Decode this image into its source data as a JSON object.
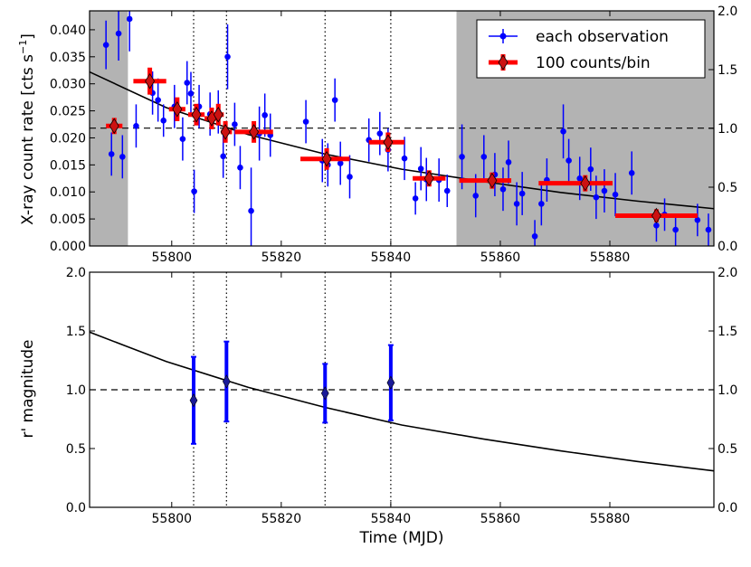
{
  "chart_data": [
    {
      "type": "scatter",
      "panel": "top",
      "ylabel_main": "X-ray count rate [cts s",
      "ylabel_sup": "−1",
      "ylabel_end": "]",
      "xlim": [
        55785,
        55899
      ],
      "ylim": [
        0,
        0.0435
      ],
      "ylim_right": [
        0,
        2.0
      ],
      "yticks": [
        "0.000",
        "0.005",
        "0.010",
        "0.015",
        "0.020",
        "0.025",
        "0.030",
        "0.035",
        "0.040"
      ],
      "ytick_values": [
        0,
        0.005,
        0.01,
        0.015,
        0.02,
        0.025,
        0.03,
        0.035,
        0.04
      ],
      "yticks_right": [
        "0.0",
        "0.5",
        "1.0",
        "1.5",
        "2.0"
      ],
      "yticks_right_values": [
        0,
        0.5,
        1.0,
        1.5,
        2.0
      ],
      "shaded_regions": [
        [
          55785,
          55792
        ],
        [
          55852,
          55899
        ]
      ],
      "dashed_hline": 0.0218,
      "vlines_dotted": [
        55804,
        55810,
        55828,
        55840
      ],
      "legend": {
        "position": "top-right",
        "entries": [
          "each observation",
          "100 counts/bin"
        ]
      },
      "colors": {
        "observation": "#0000ff",
        "binned": "#ff0000",
        "binned_marker": "#cc1111",
        "shade": "#b3b3b3"
      },
      "model_curve": {
        "x": [
          55785,
          55799,
          55814,
          55828,
          55842,
          55857,
          55871,
          55885,
          55899
        ],
        "y": [
          0.0322,
          0.0256,
          0.0206,
          0.017,
          0.0142,
          0.0119,
          0.0099,
          0.0083,
          0.0069
        ]
      },
      "series": [
        {
          "name": "each observation",
          "points": [
            {
              "x": 55788,
              "y": 0.0372,
              "e": 0.0045
            },
            {
              "x": 55789,
              "y": 0.017,
              "e": 0.004
            },
            {
              "x": 55790.3,
              "y": 0.0393,
              "e": 0.005
            },
            {
              "x": 55791,
              "y": 0.0165,
              "e": 0.004
            },
            {
              "x": 55792.3,
              "y": 0.042,
              "e": 0.006
            },
            {
              "x": 55793.5,
              "y": 0.0222,
              "e": 0.004
            },
            {
              "x": 55796.5,
              "y": 0.0283,
              "e": 0.004
            },
            {
              "x": 55797.5,
              "y": 0.027,
              "e": 0.004
            },
            {
              "x": 55798.5,
              "y": 0.0232,
              "e": 0.003
            },
            {
              "x": 55800.5,
              "y": 0.0258,
              "e": 0.004
            },
            {
              "x": 55802,
              "y": 0.0198,
              "e": 0.004
            },
            {
              "x": 55802.8,
              "y": 0.0302,
              "e": 0.004
            },
            {
              "x": 55803.5,
              "y": 0.0282,
              "e": 0.004
            },
            {
              "x": 55804.1,
              "y": 0.0101,
              "e": 0.004
            },
            {
              "x": 55805,
              "y": 0.0258,
              "e": 0.004
            },
            {
              "x": 55807,
              "y": 0.0244,
              "e": 0.004
            },
            {
              "x": 55808.5,
              "y": 0.0248,
              "e": 0.004
            },
            {
              "x": 55809.4,
              "y": 0.0166,
              "e": 0.004
            },
            {
              "x": 55810.2,
              "y": 0.035,
              "e": 0.006
            },
            {
              "x": 55811.5,
              "y": 0.0225,
              "e": 0.004
            },
            {
              "x": 55812.5,
              "y": 0.0145,
              "e": 0.004
            },
            {
              "x": 55814.5,
              "y": 0.0065,
              "e": 0.008
            },
            {
              "x": 55816,
              "y": 0.0208,
              "e": 0.005
            },
            {
              "x": 55817,
              "y": 0.0242,
              "e": 0.004
            },
            {
              "x": 55818,
              "y": 0.0205,
              "e": 0.004
            },
            {
              "x": 55824.5,
              "y": 0.023,
              "e": 0.004
            },
            {
              "x": 55827.5,
              "y": 0.0158,
              "e": 0.004
            },
            {
              "x": 55828.5,
              "y": 0.015,
              "e": 0.004
            },
            {
              "x": 55829.8,
              "y": 0.027,
              "e": 0.004
            },
            {
              "x": 55830.8,
              "y": 0.0153,
              "e": 0.004
            },
            {
              "x": 55832.5,
              "y": 0.0128,
              "e": 0.004
            },
            {
              "x": 55836,
              "y": 0.0196,
              "e": 0.004
            },
            {
              "x": 55838,
              "y": 0.0208,
              "e": 0.004
            },
            {
              "x": 55839.5,
              "y": 0.0178,
              "e": 0.004
            },
            {
              "x": 55842.5,
              "y": 0.0162,
              "e": 0.004
            },
            {
              "x": 55844.5,
              "y": 0.0088,
              "e": 0.003
            },
            {
              "x": 55845.5,
              "y": 0.0143,
              "e": 0.004
            },
            {
              "x": 55846.5,
              "y": 0.0123,
              "e": 0.004
            },
            {
              "x": 55848.8,
              "y": 0.0122,
              "e": 0.004
            },
            {
              "x": 55850.3,
              "y": 0.0102,
              "e": 0.003
            },
            {
              "x": 55853,
              "y": 0.0165,
              "e": 0.006
            },
            {
              "x": 55855.5,
              "y": 0.0093,
              "e": 0.004
            },
            {
              "x": 55857,
              "y": 0.0165,
              "e": 0.004
            },
            {
              "x": 55859,
              "y": 0.0132,
              "e": 0.004
            },
            {
              "x": 55860.5,
              "y": 0.0105,
              "e": 0.004
            },
            {
              "x": 55861.5,
              "y": 0.0155,
              "e": 0.004
            },
            {
              "x": 55863,
              "y": 0.0078,
              "e": 0.004
            },
            {
              "x": 55864,
              "y": 0.0097,
              "e": 0.004
            },
            {
              "x": 55866.3,
              "y": 0.0018,
              "e": 0.003
            },
            {
              "x": 55867.5,
              "y": 0.0078,
              "e": 0.004
            },
            {
              "x": 55868.5,
              "y": 0.0122,
              "e": 0.004
            },
            {
              "x": 55871.5,
              "y": 0.0212,
              "e": 0.005
            },
            {
              "x": 55872.5,
              "y": 0.0158,
              "e": 0.004
            },
            {
              "x": 55874.5,
              "y": 0.0125,
              "e": 0.004
            },
            {
              "x": 55876.5,
              "y": 0.0142,
              "e": 0.004
            },
            {
              "x": 55877.5,
              "y": 0.009,
              "e": 0.004
            },
            {
              "x": 55879,
              "y": 0.0102,
              "e": 0.004
            },
            {
              "x": 55881,
              "y": 0.0095,
              "e": 0.004
            },
            {
              "x": 55884,
              "y": 0.0135,
              "e": 0.004
            },
            {
              "x": 55888.5,
              "y": 0.0038,
              "e": 0.003
            },
            {
              "x": 55890,
              "y": 0.0058,
              "e": 0.003
            },
            {
              "x": 55892,
              "y": 0.003,
              "e": 0.003
            },
            {
              "x": 55896,
              "y": 0.0048,
              "e": 0.003
            },
            {
              "x": 55898,
              "y": 0.003,
              "e": 0.003
            }
          ]
        },
        {
          "name": "100 counts/bin",
          "points": [
            {
              "x": 55789.5,
              "y": 0.0222,
              "xlo": 55788,
              "xhi": 55791,
              "e": 0.0015
            },
            {
              "x": 55796,
              "y": 0.0305,
              "xlo": 55793,
              "xhi": 55799,
              "e": 0.0025
            },
            {
              "x": 55801,
              "y": 0.0253,
              "xlo": 55799.5,
              "xhi": 55802.5,
              "e": 0.0022
            },
            {
              "x": 55804.5,
              "y": 0.0243,
              "xlo": 55803,
              "xhi": 55806,
              "e": 0.002
            },
            {
              "x": 55807.3,
              "y": 0.0236,
              "xlo": 55806,
              "xhi": 55808.5,
              "e": 0.002
            },
            {
              "x": 55808.5,
              "y": 0.0243,
              "xlo": 55807.5,
              "xhi": 55809.5,
              "e": 0.002
            },
            {
              "x": 55809.8,
              "y": 0.0211,
              "xlo": 55809,
              "xhi": 55811,
              "e": 0.002
            },
            {
              "x": 55815,
              "y": 0.0211,
              "xlo": 55811.5,
              "xhi": 55818.5,
              "e": 0.002
            },
            {
              "x": 55828.3,
              "y": 0.0161,
              "xlo": 55823.5,
              "xhi": 55832.5,
              "e": 0.002
            },
            {
              "x": 55839.5,
              "y": 0.0192,
              "xlo": 55836,
              "xhi": 55842.5,
              "e": 0.0018
            },
            {
              "x": 55847,
              "y": 0.0125,
              "xlo": 55844,
              "xhi": 55850,
              "e": 0.0015
            },
            {
              "x": 55858.5,
              "y": 0.0121,
              "xlo": 55852.5,
              "xhi": 55862,
              "e": 0.0015
            },
            {
              "x": 55875.5,
              "y": 0.0116,
              "xlo": 55867,
              "xhi": 55880.5,
              "e": 0.0015
            },
            {
              "x": 55888.5,
              "y": 0.0056,
              "xlo": 55881,
              "xhi": 55896,
              "e": 0.0012
            }
          ]
        }
      ]
    },
    {
      "type": "scatter",
      "panel": "bottom",
      "title": "",
      "xlabel": "Time (MJD)",
      "ylabel": "r' magnitude",
      "xlim": [
        55785,
        55899
      ],
      "ylim": [
        0,
        2.0
      ],
      "xticks": [
        "55800",
        "55820",
        "55840",
        "55860",
        "55880"
      ],
      "xtick_values": [
        55800,
        55820,
        55840,
        55860,
        55880
      ],
      "yticks": [
        "0.0",
        "0.5",
        "1.0",
        "1.5",
        "2.0"
      ],
      "ytick_values": [
        0,
        0.5,
        1.0,
        1.5,
        2.0
      ],
      "dashed_hline": 1.0,
      "vlines_dotted": [
        55804,
        55810,
        55828,
        55840
      ],
      "colors": {
        "points": "#0000ff",
        "marker": "#1a1a99"
      },
      "model_curve": {
        "x": [
          55785,
          55799,
          55814,
          55828,
          55842,
          55857,
          55871,
          55885,
          55899
        ],
        "y": [
          1.49,
          1.24,
          1.02,
          0.85,
          0.7,
          0.58,
          0.48,
          0.39,
          0.31
        ]
      },
      "series": [
        {
          "name": "r' magnitude",
          "points": [
            {
              "x": 55804,
              "y": 0.91,
              "e": 0.37
            },
            {
              "x": 55810,
              "y": 1.07,
              "e": 0.34
            },
            {
              "x": 55828,
              "y": 0.97,
              "e": 0.25
            },
            {
              "x": 55840,
              "y": 1.06,
              "e": 0.32
            }
          ]
        }
      ]
    }
  ]
}
